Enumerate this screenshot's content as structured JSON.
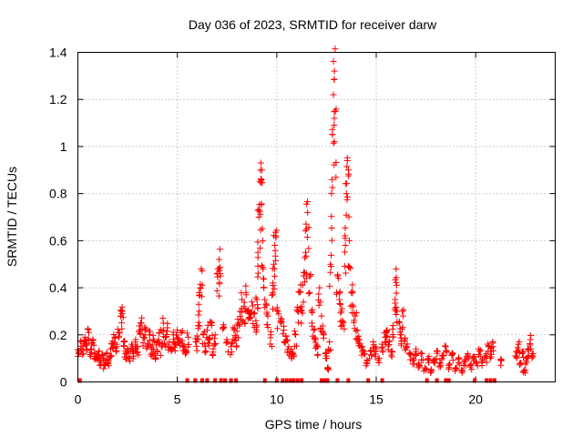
{
  "chart_data": {
    "type": "scatter",
    "title": "Day 036 of 2023, SRMTID for receiver darw",
    "xlabel": "GPS time / hours",
    "ylabel": "SRMTID / TECUs",
    "xlim": [
      0,
      24
    ],
    "ylim": [
      0,
      1.4
    ],
    "x_ticks": [
      0,
      5,
      10,
      15,
      20
    ],
    "x_tick_labels": [
      "0",
      "5",
      "10",
      "15",
      "20"
    ],
    "y_ticks": [
      0,
      0.2,
      0.4,
      0.6,
      0.8,
      1.0,
      1.2,
      1.4
    ],
    "y_tick_labels": [
      "0",
      "0.2",
      "0.4",
      "0.6",
      "0.8",
      "1",
      "1.2",
      "1.4"
    ],
    "grid": true,
    "marker": "plus",
    "color": "#ff0000",
    "series": [
      {
        "name": "SRMTID",
        "points": [
          [
            0.05,
            0.13
          ],
          [
            0.15,
            0.17
          ],
          [
            0.25,
            0.15
          ],
          [
            0.35,
            0.19
          ],
          [
            0.45,
            0.16
          ],
          [
            0.55,
            0.21
          ],
          [
            0.65,
            0.14
          ],
          [
            0.75,
            0.18
          ],
          [
            0.85,
            0.12
          ],
          [
            0.95,
            0.1
          ],
          [
            1.05,
            0.13
          ],
          [
            1.15,
            0.08
          ],
          [
            1.25,
            0.11
          ],
          [
            1.35,
            0.07
          ],
          [
            1.45,
            0.12
          ],
          [
            1.55,
            0.09
          ],
          [
            1.65,
            0.14
          ],
          [
            1.75,
            0.16
          ],
          [
            1.85,
            0.19
          ],
          [
            1.95,
            0.15
          ],
          [
            2.05,
            0.21
          ],
          [
            2.15,
            0.28
          ],
          [
            2.22,
            0.29
          ],
          [
            2.3,
            0.17
          ],
          [
            2.4,
            0.12
          ],
          [
            2.5,
            0.14
          ],
          [
            2.6,
            0.1
          ],
          [
            2.7,
            0.16
          ],
          [
            2.8,
            0.13
          ],
          [
            2.9,
            0.18
          ],
          [
            3.0,
            0.15
          ],
          [
            3.1,
            0.22
          ],
          [
            3.2,
            0.25
          ],
          [
            3.3,
            0.19
          ],
          [
            3.4,
            0.23
          ],
          [
            3.5,
            0.16
          ],
          [
            3.6,
            0.2
          ],
          [
            3.7,
            0.14
          ],
          [
            3.8,
            0.18
          ],
          [
            3.9,
            0.12
          ],
          [
            4.0,
            0.17
          ],
          [
            4.1,
            0.21
          ],
          [
            4.2,
            0.15
          ],
          [
            4.3,
            0.25
          ],
          [
            4.4,
            0.19
          ],
          [
            4.5,
            0.23
          ],
          [
            4.6,
            0.17
          ],
          [
            4.7,
            0.14
          ],
          [
            4.8,
            0.2
          ],
          [
            4.9,
            0.16
          ],
          [
            5.0,
            0.22
          ],
          [
            5.1,
            0.18
          ],
          [
            5.2,
            0.21
          ],
          [
            5.3,
            0.15
          ],
          [
            5.45,
            0.13
          ],
          [
            5.55,
            0.19
          ],
          [
            5.95,
            0.17
          ],
          [
            6.05,
            0.24
          ],
          [
            6.1,
            0.3
          ],
          [
            6.15,
            0.4
          ],
          [
            6.2,
            0.48
          ],
          [
            6.3,
            0.2
          ],
          [
            6.4,
            0.15
          ],
          [
            6.5,
            0.22
          ],
          [
            6.6,
            0.18
          ],
          [
            6.7,
            0.25
          ],
          [
            6.8,
            0.14
          ],
          [
            6.9,
            0.2
          ],
          [
            7.05,
            0.48
          ],
          [
            7.1,
            0.52
          ],
          [
            7.15,
            0.46
          ],
          [
            7.3,
            0.23
          ],
          [
            7.5,
            0.17
          ],
          [
            7.7,
            0.15
          ],
          [
            7.85,
            0.22
          ],
          [
            7.95,
            0.19
          ],
          [
            8.05,
            0.25
          ],
          [
            8.15,
            0.3
          ],
          [
            8.25,
            0.35
          ],
          [
            8.35,
            0.32
          ],
          [
            8.45,
            0.38
          ],
          [
            8.55,
            0.3
          ],
          [
            8.65,
            0.27
          ],
          [
            8.75,
            0.34
          ],
          [
            8.85,
            0.29
          ],
          [
            8.95,
            0.26
          ],
          [
            9.0,
            0.35
          ],
          [
            9.05,
            0.55
          ],
          [
            9.1,
            0.7
          ],
          [
            9.15,
            0.85
          ],
          [
            9.2,
            0.93
          ],
          [
            9.25,
            0.9
          ],
          [
            9.3,
            0.6
          ],
          [
            9.35,
            0.4
          ],
          [
            9.45,
            0.33
          ],
          [
            9.55,
            0.28
          ],
          [
            9.7,
            0.2
          ],
          [
            9.8,
            0.38
          ],
          [
            9.85,
            0.5
          ],
          [
            9.9,
            0.58
          ],
          [
            9.95,
            0.62
          ],
          [
            10.05,
            0.3
          ],
          [
            10.2,
            0.25
          ],
          [
            10.35,
            0.22
          ],
          [
            10.5,
            0.18
          ],
          [
            10.6,
            0.15
          ],
          [
            10.7,
            0.13
          ],
          [
            10.8,
            0.12
          ],
          [
            10.95,
            0.2
          ],
          [
            11.05,
            0.3
          ],
          [
            11.15,
            0.38
          ],
          [
            11.25,
            0.32
          ],
          [
            11.35,
            0.45
          ],
          [
            11.45,
            0.55
          ],
          [
            11.5,
            0.65
          ],
          [
            11.55,
            0.72
          ],
          [
            11.65,
            0.45
          ],
          [
            11.75,
            0.3
          ],
          [
            11.85,
            0.22
          ],
          [
            11.95,
            0.18
          ],
          [
            12.05,
            0.15
          ],
          [
            12.15,
            0.4
          ],
          [
            12.25,
            0.28
          ],
          [
            12.35,
            0.2
          ],
          [
            12.45,
            0.12
          ],
          [
            12.55,
            0.06
          ],
          [
            12.65,
            0.17
          ],
          [
            12.7,
            0.5
          ],
          [
            12.75,
            0.8
          ],
          [
            12.8,
            1.05
          ],
          [
            12.85,
            1.22
          ],
          [
            12.9,
            1.32
          ],
          [
            12.95,
            1.15
          ],
          [
            13.05,
            0.45
          ],
          [
            13.15,
            0.35
          ],
          [
            13.25,
            0.3
          ],
          [
            13.35,
            0.25
          ],
          [
            13.45,
            0.58
          ],
          [
            13.5,
            0.8
          ],
          [
            13.55,
            0.94
          ],
          [
            13.6,
            0.9
          ],
          [
            13.65,
            0.6
          ],
          [
            13.75,
            0.38
          ],
          [
            13.85,
            0.32
          ],
          [
            13.95,
            0.28
          ],
          [
            14.05,
            0.22
          ],
          [
            14.15,
            0.18
          ],
          [
            14.3,
            0.15
          ],
          [
            14.4,
            0.12
          ],
          [
            14.55,
            0.09
          ],
          [
            14.7,
            0.13
          ],
          [
            14.85,
            0.17
          ],
          [
            15.0,
            0.14
          ],
          [
            15.15,
            0.1
          ],
          [
            15.3,
            0.16
          ],
          [
            15.45,
            0.19
          ],
          [
            15.55,
            0.22
          ],
          [
            15.65,
            0.17
          ],
          [
            15.75,
            0.13
          ],
          [
            15.85,
            0.24
          ],
          [
            15.95,
            0.35
          ],
          [
            16.0,
            0.48
          ],
          [
            16.05,
            0.3
          ],
          [
            16.15,
            0.25
          ],
          [
            16.25,
            0.2
          ],
          [
            16.35,
            0.28
          ],
          [
            16.45,
            0.18
          ],
          [
            16.55,
            0.15
          ],
          [
            16.7,
            0.12
          ],
          [
            16.85,
            0.1
          ],
          [
            17.0,
            0.14
          ],
          [
            17.15,
            0.08
          ],
          [
            17.3,
            0.12
          ],
          [
            17.45,
            0.06
          ],
          [
            17.6,
            0.1
          ],
          [
            17.75,
            0.05
          ],
          [
            17.9,
            0.09
          ],
          [
            18.05,
            0.13
          ],
          [
            18.2,
            0.08
          ],
          [
            18.35,
            0.11
          ],
          [
            18.5,
            0.15
          ],
          [
            18.65,
            0.07
          ],
          [
            18.85,
            0.12
          ],
          [
            19.0,
            0.06
          ],
          [
            19.15,
            0.1
          ],
          [
            19.3,
            0.05
          ],
          [
            19.45,
            0.09
          ],
          [
            19.6,
            0.12
          ],
          [
            19.75,
            0.07
          ],
          [
            19.9,
            0.1
          ],
          [
            20.05,
            0.08
          ],
          [
            20.2,
            0.13
          ],
          [
            20.35,
            0.09
          ],
          [
            20.5,
            0.11
          ],
          [
            20.65,
            0.15
          ],
          [
            20.75,
            0.13
          ],
          [
            20.85,
            0.17
          ],
          [
            21.3,
            0.09
          ],
          [
            22.05,
            0.13
          ],
          [
            22.15,
            0.16
          ],
          [
            22.25,
            0.08
          ],
          [
            22.35,
            0.12
          ],
          [
            22.45,
            0.05
          ],
          [
            22.55,
            0.1
          ],
          [
            22.65,
            0.14
          ],
          [
            22.75,
            0.18
          ],
          [
            22.85,
            0.12
          ]
        ]
      }
    ],
    "zero_markers_x": [
      0.1,
      5.5,
      5.9,
      6.25,
      6.5,
      6.9,
      7.2,
      7.4,
      7.7,
      7.95,
      9.4,
      10.0,
      10.3,
      10.5,
      10.7,
      10.85,
      11.05,
      11.25,
      12.25,
      12.4,
      12.55,
      13.05,
      13.6,
      14.6,
      15.3,
      17.55,
      18.05,
      18.5,
      18.65,
      19.95,
      20.55,
      20.75,
      20.95
    ]
  }
}
